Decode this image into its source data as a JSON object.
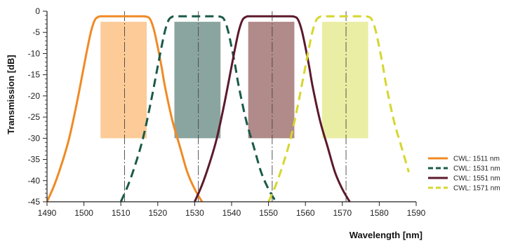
{
  "chart_data": {
    "type": "line",
    "title": "",
    "xlabel": "Wavelength [nm]",
    "ylabel": "Transmission [dB]",
    "xlim": [
      1490,
      1590
    ],
    "ylim": [
      -45,
      0
    ],
    "xticks": [
      1490,
      1500,
      1510,
      1520,
      1530,
      1540,
      1550,
      1560,
      1570,
      1580,
      1590
    ],
    "yticks": [
      0,
      -5,
      -10,
      -15,
      -20,
      -25,
      -30,
      -35,
      -40,
      -45
    ],
    "grid": false,
    "legend_position": "bottom-right",
    "series": [
      {
        "name": "CWL: 1511 nm",
        "color": "#f08a24",
        "dash": "solid",
        "center": 1511,
        "x": [
          1490,
          1492,
          1494,
          1496,
          1498,
          1500,
          1501,
          1502,
          1503,
          1504,
          1505,
          1510,
          1515,
          1517,
          1518,
          1519,
          1520,
          1521,
          1522,
          1524,
          1526,
          1528,
          1530,
          1532
        ],
        "y": [
          -45,
          -41,
          -36,
          -30,
          -22,
          -13,
          -8.5,
          -4.5,
          -2,
          -1.3,
          -1.2,
          -1.2,
          -1.2,
          -1.3,
          -2,
          -4.5,
          -8.5,
          -13,
          -18,
          -26,
          -32,
          -38,
          -42,
          -45
        ]
      },
      {
        "name": "CWL: 1531 nm",
        "color": "#1a5a48",
        "dash": "dashed",
        "center": 1531,
        "x": [
          1510,
          1512,
          1514,
          1516,
          1518,
          1520,
          1521,
          1522,
          1523,
          1524,
          1525,
          1530,
          1535,
          1537,
          1538,
          1539,
          1540,
          1541,
          1542,
          1544,
          1546,
          1548,
          1550,
          1552
        ],
        "y": [
          -45,
          -41,
          -36,
          -30,
          -22,
          -13,
          -8.5,
          -4.5,
          -2,
          -1.3,
          -1.2,
          -1.2,
          -1.2,
          -1.3,
          -2,
          -4.5,
          -8.5,
          -13,
          -18,
          -26,
          -32,
          -38,
          -42,
          -45
        ]
      },
      {
        "name": "CWL: 1551 nm",
        "color": "#5c1a2c",
        "dash": "solid",
        "center": 1551,
        "x": [
          1530,
          1532,
          1534,
          1536,
          1538,
          1540,
          1541,
          1542,
          1543,
          1544,
          1545,
          1550,
          1555,
          1557,
          1558,
          1559,
          1560,
          1561,
          1562,
          1564,
          1566,
          1568,
          1570,
          1572
        ],
        "y": [
          -45,
          -41,
          -36,
          -30,
          -22,
          -13,
          -8.5,
          -4.5,
          -2,
          -1.3,
          -1.2,
          -1.2,
          -1.2,
          -1.3,
          -2,
          -4.5,
          -8.5,
          -13,
          -18,
          -26,
          -32,
          -38,
          -42,
          -45
        ]
      },
      {
        "name": "CWL: 1571 nm",
        "color": "#d6d62e",
        "dash": "dashed",
        "center": 1571,
        "x": [
          1550,
          1552,
          1554,
          1556,
          1558,
          1560,
          1561,
          1562,
          1563,
          1564,
          1565,
          1570,
          1575,
          1577,
          1578,
          1579,
          1580,
          1581,
          1582,
          1584,
          1586,
          1588
        ],
        "y": [
          -45,
          -41,
          -36,
          -30,
          -22,
          -13,
          -8.5,
          -4.5,
          -2,
          -1.3,
          -1.2,
          -1.2,
          -1.2,
          -1.3,
          -2,
          -4.5,
          -8.5,
          -13,
          -18,
          -26,
          -32,
          -38
        ]
      }
    ],
    "passbands": [
      {
        "x0": 1504.5,
        "x1": 1517,
        "y0": -2.5,
        "y1": -30,
        "color": "#fccb98"
      },
      {
        "x0": 1524.5,
        "x1": 1537,
        "y0": -2.5,
        "y1": -30,
        "color": "#8aa59f"
      },
      {
        "x0": 1544.5,
        "x1": 1557,
        "y0": -2.5,
        "y1": -30,
        "color": "#b18a8a"
      },
      {
        "x0": 1564.5,
        "x1": 1577,
        "y0": -2.5,
        "y1": -30,
        "color": "#eaeea4"
      }
    ]
  }
}
